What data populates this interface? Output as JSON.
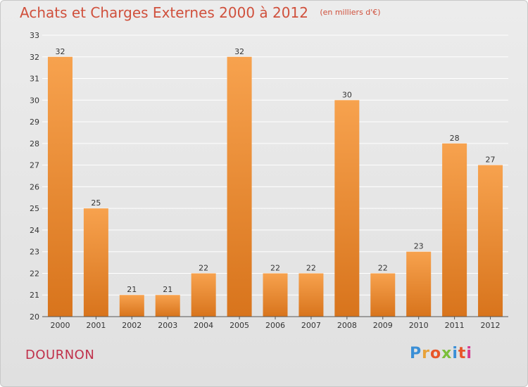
{
  "header": {
    "title": "Achats et Charges Externes 2000 à 2012",
    "subtitle": "(en milliers d'€)"
  },
  "footer": {
    "commune": "DOURNON",
    "logo_letters": [
      "P",
      "r",
      "o",
      "x",
      "i",
      "t",
      "i"
    ],
    "logo_colors": [
      "#3a8fd6",
      "#e8a23a",
      "#e8562a",
      "#7bbf3a",
      "#3a8fd6",
      "#e8562a",
      "#d63a8f"
    ]
  },
  "chart_data": {
    "type": "bar",
    "categories": [
      "2000",
      "2001",
      "2002",
      "2003",
      "2004",
      "2005",
      "2006",
      "2007",
      "2008",
      "2009",
      "2010",
      "2011",
      "2012"
    ],
    "values": [
      32,
      25,
      21,
      21,
      22,
      32,
      22,
      22,
      30,
      22,
      23,
      28,
      27
    ],
    "data_labels": [
      "32",
      "25",
      "21",
      "21",
      "22",
      "32",
      "22",
      "22",
      "30",
      "22",
      "23",
      "28",
      "27"
    ],
    "title": "Achats et Charges Externes 2000 à 2012",
    "xlabel": "",
    "ylabel": "",
    "ylim": [
      20,
      33
    ],
    "yticks": [
      20,
      21,
      22,
      23,
      24,
      25,
      26,
      27,
      28,
      29,
      30,
      31,
      32,
      33
    ],
    "grid": true,
    "colors": {
      "bar_top": "#f7a24e",
      "bar_bottom": "#d8741c",
      "grid": "#ffffff"
    }
  }
}
